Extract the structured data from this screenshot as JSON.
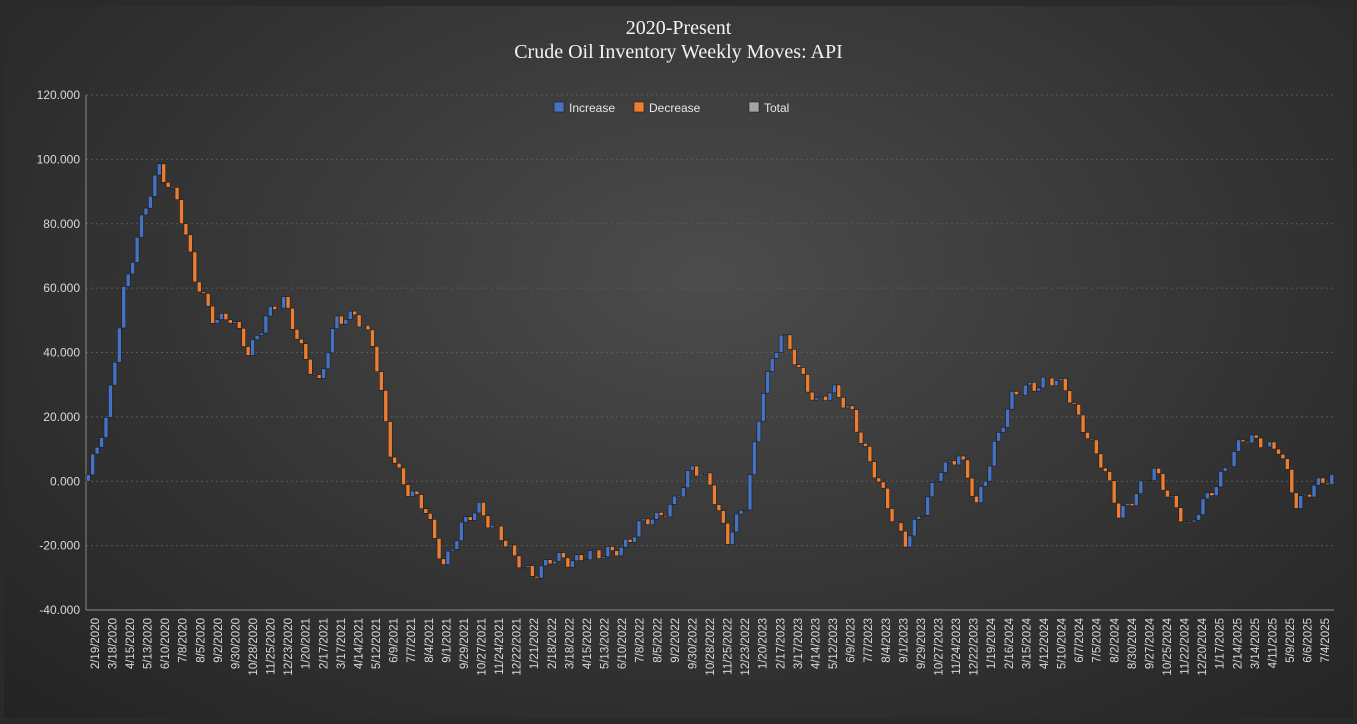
{
  "chart_data": {
    "type": "waterfall",
    "title_line1": "2020-Present",
    "title_line2": "Crude Oil Inventory Weekly Moves: API",
    "legend": [
      "Increase",
      "Decrease",
      "Total"
    ],
    "legend_position": "top-center",
    "ylim": [
      -40,
      120
    ],
    "yticks": [
      "120.000",
      "100.000",
      "80.000",
      "60.000",
      "40.000",
      "20.000",
      "0.000",
      "-20.000",
      "-40.000"
    ],
    "grid": true,
    "colors": {
      "increase": "#4472c4",
      "decrease": "#ed7d31",
      "total": "#a5a5a5"
    },
    "x_tick_labels": [
      "2/19/2020",
      "3/18/2020",
      "4/15/2020",
      "5/13/2020",
      "6/10/2020",
      "7/8/2020",
      "8/5/2020",
      "9/2/2020",
      "9/30/2020",
      "10/28/2020",
      "11/25/2020",
      "12/23/2020",
      "1/20/2021",
      "2/17/2021",
      "3/17/2021",
      "4/14/2021",
      "5/12/2021",
      "6/9/2021",
      "7/7/2021",
      "8/4/2021",
      "9/1/2021",
      "9/29/2021",
      "10/27/2021",
      "11/24/2021",
      "12/22/2021",
      "1/21/2022",
      "2/18/2022",
      "3/18/2022",
      "4/15/2022",
      "5/13/2022",
      "6/10/2022",
      "7/8/2022",
      "8/5/2022",
      "9/2/2022",
      "9/30/2022",
      "10/28/2022",
      "11/25/2022",
      "12/23/2022",
      "1/20/2023",
      "2/17/2023",
      "3/17/2023",
      "4/14/2023",
      "5/12/2023",
      "6/9/2023",
      "7/7/2023",
      "8/4/2023",
      "9/1/2023",
      "9/29/2023",
      "10/27/2023",
      "11/24/2023",
      "12/22/2023",
      "1/19/2024",
      "2/16/2024",
      "3/15/2024",
      "4/12/2024",
      "5/10/2024",
      "6/7/2024",
      "7/5/2024",
      "8/2/2024",
      "8/30/2024",
      "9/27/2024",
      "10/25/2024",
      "11/22/2024",
      "12/20/2024",
      "1/17/2025",
      "2/14/2025",
      "3/14/2025",
      "4/11/2025",
      "5/9/2025",
      "6/6/2025",
      "7/4/2025"
    ],
    "cumulative_anchor": [
      2,
      18,
      60,
      80,
      98,
      88,
      62,
      52,
      50,
      40,
      52,
      55,
      42,
      30,
      50,
      53,
      42,
      10,
      -3,
      -10,
      -25,
      -15,
      -8,
      -15,
      -25,
      -28,
      -25,
      -25,
      -22,
      -24,
      -20,
      -14,
      -12,
      -5,
      3,
      0,
      -18,
      -8,
      30,
      45,
      35,
      25,
      27,
      22,
      5,
      -8,
      -18,
      -10,
      5,
      8,
      -8,
      12,
      25,
      30,
      32,
      28,
      18,
      5,
      -10,
      -3,
      2,
      -5,
      -15,
      -5,
      5,
      12,
      13,
      10,
      -8,
      0,
      0
    ]
  }
}
